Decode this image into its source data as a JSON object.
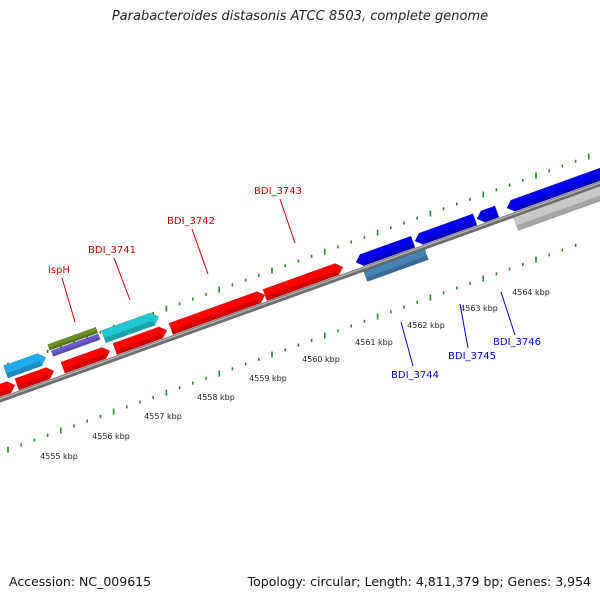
{
  "title": "Parabacteroides distasonis ATCC 8503, complete genome",
  "footer": {
    "accession": "Accession: NC_009615",
    "summary": "Topology: circular; Length: 4,811,379 bp; Genes: 3,954"
  },
  "colors": {
    "forward_cds": "#ff0000",
    "reverse_cds": "#0000ee",
    "forward_label": "#cc0000",
    "reverse_label": "#0000cc",
    "cyan_feature": "#22c8d0",
    "light_blue_feature": "#22aaf0",
    "olive_feature": "#6b8e23",
    "purple_feature": "#6a5acd",
    "steel_feature": "#4682b4",
    "grey_feature": "#c8c8c8",
    "backbone": "#808080",
    "tick": "#228b22"
  },
  "kbp_ticks": [
    "4555 kbp",
    "4556 kbp",
    "4557 kbp",
    "4558 kbp",
    "4559 kbp",
    "4560 kbp",
    "4561 kbp",
    "4562 kbp",
    "4563 kbp",
    "4564 kbp"
  ],
  "gene_labels": [
    {
      "name": "ispH",
      "strand": "forward"
    },
    {
      "name": "BDI_3741",
      "strand": "forward"
    },
    {
      "name": "BDI_3742",
      "strand": "forward"
    },
    {
      "name": "BDI_3743",
      "strand": "forward"
    },
    {
      "name": "BDI_3744",
      "strand": "reverse"
    },
    {
      "name": "BDI_3745",
      "strand": "reverse"
    },
    {
      "name": "BDI_3746",
      "strand": "reverse"
    }
  ]
}
